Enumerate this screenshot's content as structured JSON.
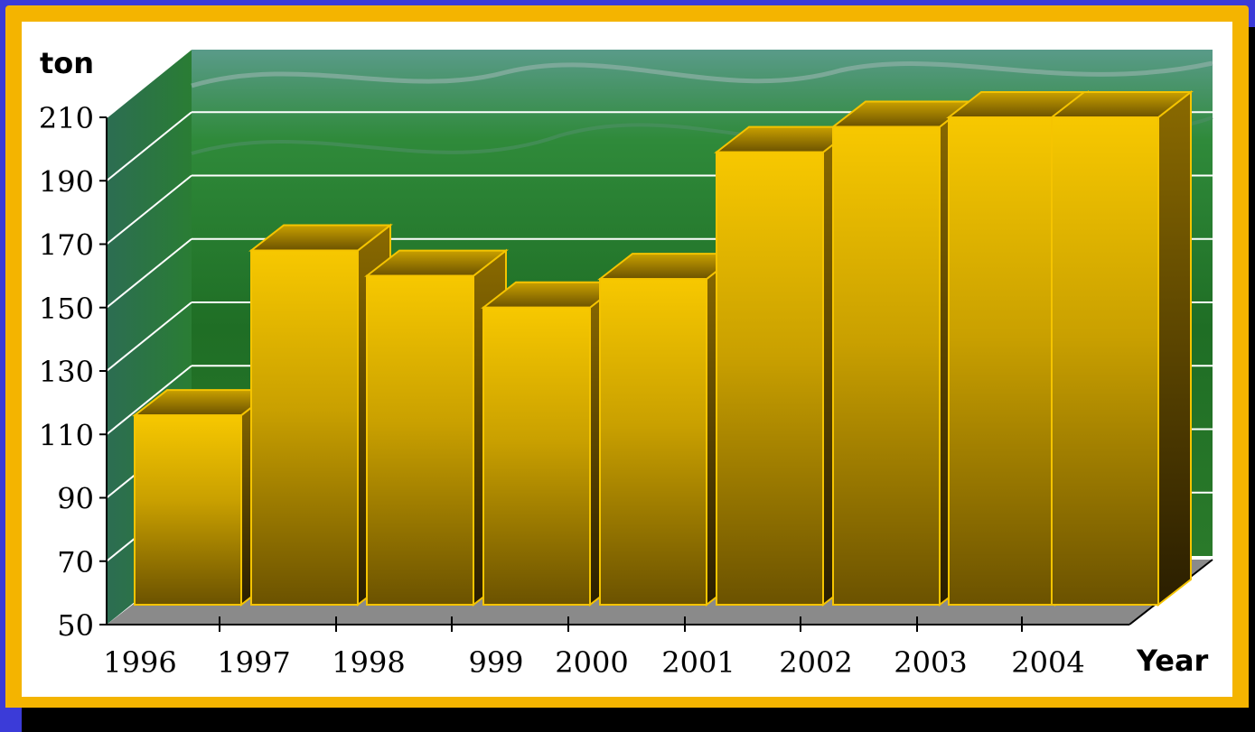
{
  "chart_data": {
    "type": "bar",
    "ylabel": "ton",
    "xlabel": "Year",
    "ylim": [
      50,
      210
    ],
    "yticks": [
      50,
      70,
      90,
      110,
      130,
      150,
      170,
      190,
      210
    ],
    "xtick_labels": [
      "1996",
      "1997",
      "1998",
      "999",
      "2000",
      "2001",
      "2002",
      "2003",
      "2004"
    ],
    "values": [
      116,
      168,
      160,
      150,
      159,
      199,
      207,
      210,
      210
    ],
    "grid": true,
    "colors": {
      "bar_top": "#f5c400",
      "bar_bottom": "#6b5200",
      "frame": "#f4b400",
      "background": "#3b3bd8",
      "grid": "#ffffff"
    }
  }
}
